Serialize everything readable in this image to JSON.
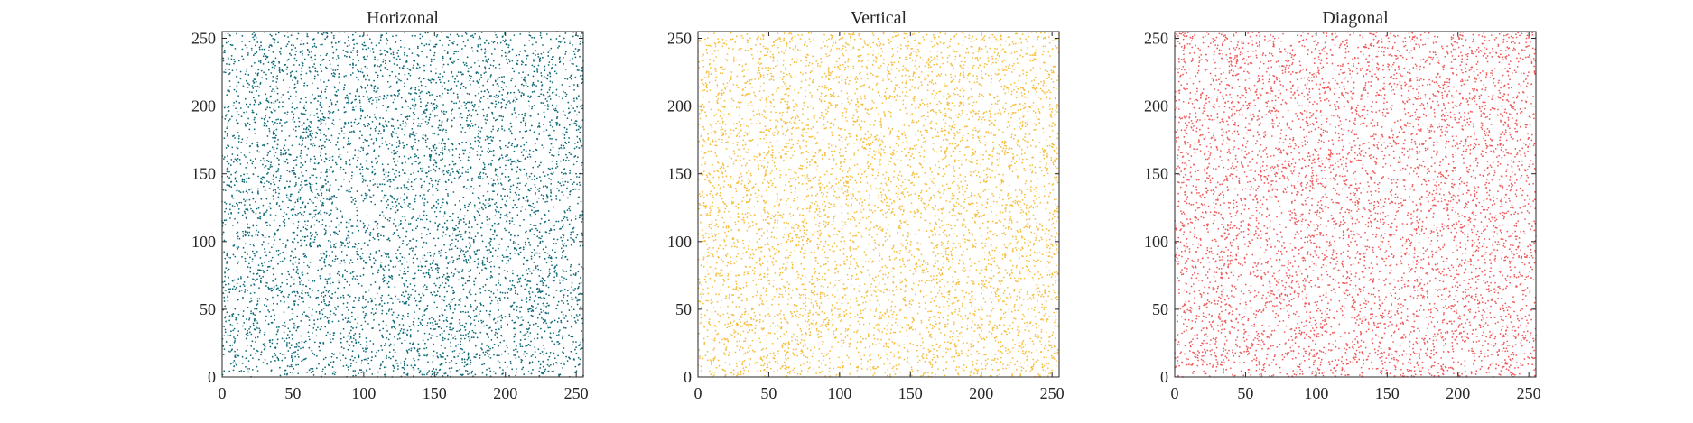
{
  "figure": {
    "background": "#ffffff",
    "axis_color": "#262626"
  },
  "chart_data": [
    {
      "type": "scatter",
      "title": "Horizonal",
      "xlabel": "",
      "ylabel": "",
      "xlim": [
        0,
        255
      ],
      "ylim": [
        0,
        255
      ],
      "xticks": [
        0,
        50,
        100,
        150,
        200,
        250
      ],
      "yticks": [
        0,
        50,
        100,
        150,
        200,
        250
      ],
      "grid": false,
      "marker_color": "#0f6b78",
      "point_count": 6000,
      "distribution": "uniform random over [0,255] x [0,255]"
    },
    {
      "type": "scatter",
      "title": "Vertical",
      "xlabel": "",
      "ylabel": "",
      "xlim": [
        0,
        255
      ],
      "ylim": [
        0,
        255
      ],
      "xticks": [
        0,
        50,
        100,
        150,
        200,
        250
      ],
      "yticks": [
        0,
        50,
        100,
        150,
        200,
        250
      ],
      "grid": false,
      "marker_color": "#f6be3b",
      "point_count": 6000,
      "distribution": "uniform random over [0,255] x [0,255]"
    },
    {
      "type": "scatter",
      "title": "Diagonal",
      "xlabel": "",
      "ylabel": "",
      "xlim": [
        0,
        255
      ],
      "ylim": [
        0,
        255
      ],
      "xticks": [
        0,
        50,
        100,
        150,
        200,
        250
      ],
      "yticks": [
        0,
        50,
        100,
        150,
        200,
        250
      ],
      "grid": false,
      "marker_color": "#ef5b5b",
      "point_count": 6000,
      "distribution": "uniform random over [0,255] x [0,255]"
    }
  ]
}
